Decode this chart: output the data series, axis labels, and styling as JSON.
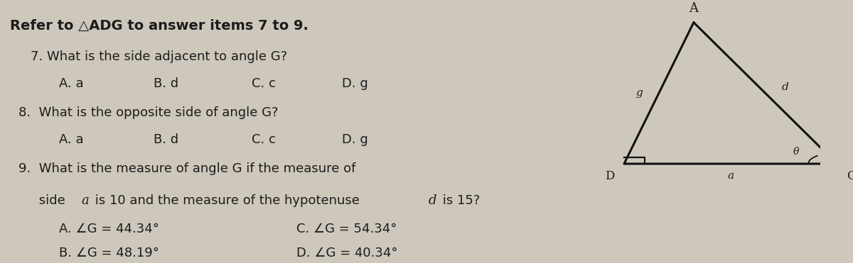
{
  "bg_color": "#cec8bc",
  "title": "Refer to △ADG to answer items 7 to 9.",
  "q7_text": "7. What is the side adjacent to angle G?",
  "q7_choices": [
    "A. a",
    "B. d",
    "C. c",
    "D. g"
  ],
  "q8_text": "8.  What is the opposite side of angle G?",
  "q8_choices": [
    "A. a",
    "B. d",
    "C. c",
    "D. g"
  ],
  "q9_line1": "9.  What is the measure of angle G if the measure of",
  "q9_line2a": "     side ",
  "q9_line2b": "a",
  "q9_line2c": " is 10 and the measure of the hypotenuse ",
  "q9_line2d": "d",
  "q9_line2e": " is 15?",
  "q9_choices_left": [
    "A. ∠G = 44.34°",
    "B. ∠G = 48.19°"
  ],
  "q9_choices_right": [
    "C. ∠G = 54.34°",
    "D. ∠G = 40.34°"
  ],
  "text_color": "#1c1c1c",
  "title_fontsize": 14,
  "body_fontsize": 13,
  "choice_fontsize": 13,
  "tri_A": [
    0.845,
    0.96
  ],
  "tri_D": [
    0.76,
    0.38
  ],
  "tri_G": [
    1.02,
    0.38
  ],
  "sq_size": 0.025
}
